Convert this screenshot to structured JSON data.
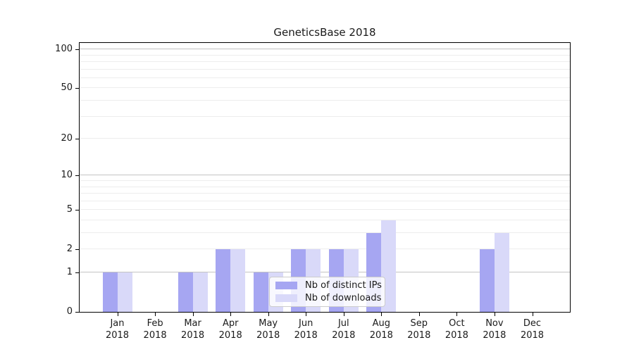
{
  "figure": {
    "title": "GeneticsBase 2018"
  },
  "chart_data": {
    "type": "bar",
    "title": "GeneticsBase 2018",
    "yscale": "log1p",
    "ylim": [
      0,
      112
    ],
    "grid": "on",
    "legend_position": "inside-lower-center",
    "categories": [
      "Jan 2018",
      "Feb 2018",
      "Mar 2018",
      "Apr 2018",
      "May 2018",
      "Jun 2018",
      "Jul 2018",
      "Aug 2018",
      "Sep 2018",
      "Oct 2018",
      "Nov 2018",
      "Dec 2018"
    ],
    "x_tick_top_labels": [
      "Jan",
      "Feb",
      "Mar",
      "Apr",
      "May",
      "Jun",
      "Jul",
      "Aug",
      "Sep",
      "Oct",
      "Nov",
      "Dec"
    ],
    "x_tick_bottom_label": "2018",
    "ytick_values": [
      0,
      1,
      2,
      5,
      10,
      20,
      50,
      100
    ],
    "ytick_labels": [
      "0",
      "1",
      "2",
      "5",
      "10",
      "20",
      "50",
      "100"
    ],
    "major_gridline_values": [
      1,
      10,
      100
    ],
    "minor_gridline_values": [
      2,
      3,
      4,
      5,
      6,
      7,
      8,
      9,
      20,
      30,
      40,
      50,
      60,
      70,
      80,
      90
    ],
    "series": [
      {
        "name": "Nb of distinct IPs",
        "color": "#a6a6f2",
        "values": [
          1,
          0,
          1,
          2,
          1,
          2,
          2,
          3,
          0,
          0,
          2,
          0
        ]
      },
      {
        "name": "Nb of downloads",
        "color": "#d9d9f9",
        "values": [
          1,
          0,
          1,
          2,
          1,
          2,
          2,
          4,
          0,
          0,
          3,
          0
        ]
      }
    ]
  },
  "colors": {
    "major_grid": "#c3c3c3",
    "minor_grid": "#ededed",
    "spine": "#000000",
    "text": "#1a1a1a",
    "legend_border": "#cccccc"
  }
}
